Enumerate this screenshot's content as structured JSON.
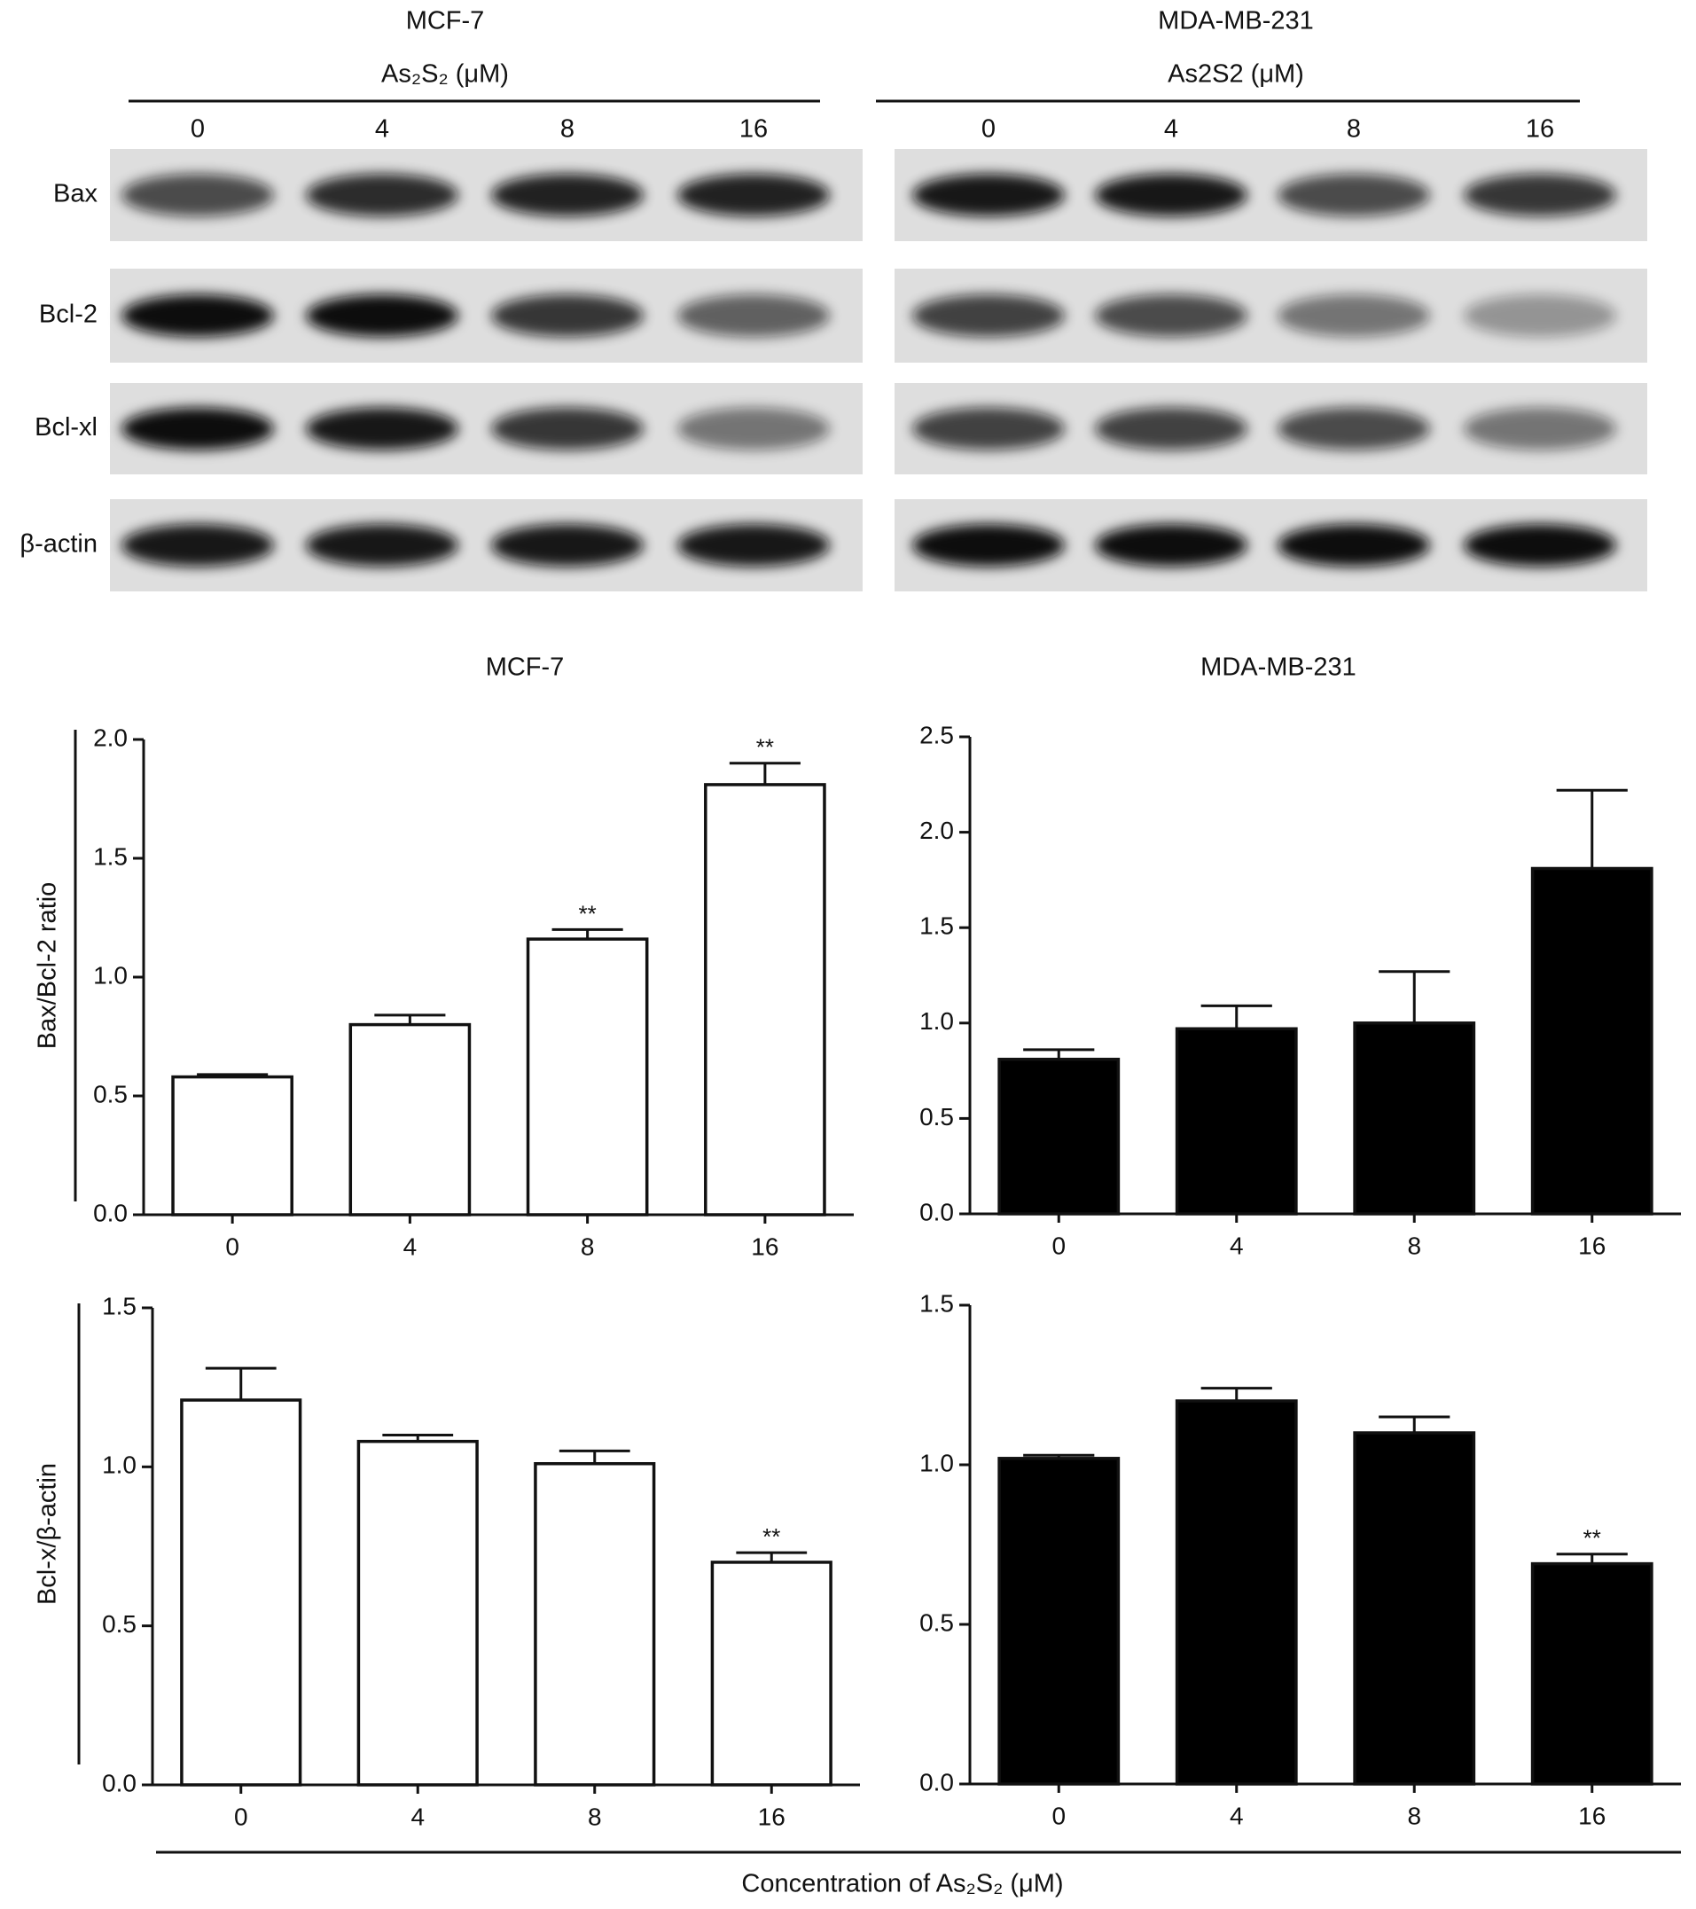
{
  "blots": [
    {
      "cell_line": "MCF-7",
      "treatment": "As₂S₂ (μM)",
      "lanes": [
        "0",
        "4",
        "8",
        "16"
      ]
    },
    {
      "cell_line": "MDA-MB-231",
      "treatment": "As2S2 (μM)",
      "lanes": [
        "0",
        "4",
        "8",
        "16"
      ]
    }
  ],
  "blot_rows": [
    "Bax",
    "Bcl-2",
    "Bcl-xl",
    "β-actin"
  ],
  "x_axis_label": "Concentration of As₂S₂ (μM)",
  "chart_data": [
    {
      "type": "bar",
      "title": "MCF-7",
      "y_label": "Bax/Bcl-2 ratio",
      "categories": [
        "0",
        "4",
        "8",
        "16"
      ],
      "values": [
        0.58,
        0.8,
        1.16,
        1.81
      ],
      "errors": [
        0.01,
        0.04,
        0.04,
        0.09
      ],
      "value_annotations": [
        null,
        null,
        "**",
        "**"
      ],
      "color": "#ffffff",
      "ylim": [
        0,
        2
      ],
      "yticks": [
        {
          "value": 0,
          "label": "0.0"
        },
        0.5,
        {
          "value": 1,
          "label": "1.0"
        },
        1.5,
        {
          "value": 2,
          "label": "2.0"
        }
      ]
    },
    {
      "type": "bar",
      "title": "MDA-MB-231",
      "categories": [
        "0",
        "4",
        "8",
        "16"
      ],
      "values": [
        0.81,
        0.97,
        1.0,
        1.81
      ],
      "errors": [
        0.05,
        0.12,
        0.27,
        0.41
      ],
      "color": "#000000",
      "ylim": [
        0,
        2.5
      ],
      "yticks": [
        {
          "value": 0,
          "label": "0.0"
        },
        0.5,
        {
          "value": 1,
          "label": "1.0"
        },
        1.5,
        {
          "value": 2,
          "label": "2.0"
        },
        2.5
      ]
    },
    {
      "type": "bar",
      "y_label": "Bcl-x/β-actin",
      "categories": [
        "0",
        "4",
        "8",
        "16"
      ],
      "values": [
        1.21,
        1.08,
        1.01,
        0.7
      ],
      "errors": [
        0.1,
        0.02,
        0.04,
        0.03
      ],
      "value_annotations": [
        null,
        null,
        null,
        "**"
      ],
      "color": "#ffffff",
      "ylim": [
        0,
        1.5
      ],
      "yticks": [
        {
          "value": 0,
          "label": "0.0"
        },
        0.5,
        {
          "value": 1,
          "label": "1.0"
        },
        1.5
      ]
    },
    {
      "type": "bar",
      "categories": [
        "0",
        "4",
        "8",
        "16"
      ],
      "values": [
        1.02,
        1.2,
        1.1,
        0.69
      ],
      "errors": [
        0.01,
        0.04,
        0.05,
        0.03
      ],
      "value_annotations": [
        null,
        null,
        null,
        "**"
      ],
      "color": "#000000",
      "ylim": [
        0,
        1.5
      ],
      "yticks": [
        {
          "value": 0,
          "label": "0.0"
        },
        0.5,
        {
          "value": 1,
          "label": "1.0"
        },
        1.5
      ]
    }
  ]
}
